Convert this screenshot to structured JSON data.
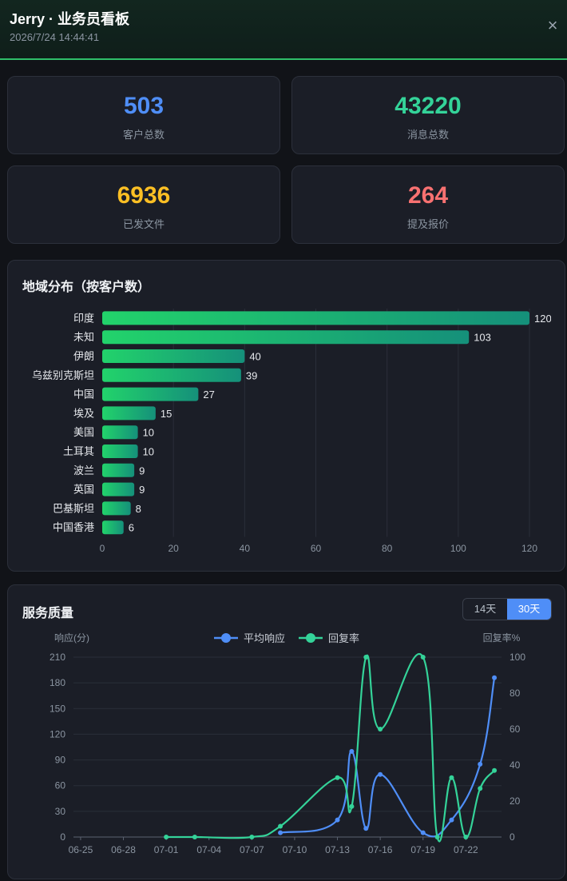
{
  "header": {
    "title": "Jerry · 业务员看板",
    "timestamp": "2026/7/24 14:44:41",
    "close_icon": "×"
  },
  "stats": [
    {
      "value": "503",
      "label": "客户总数",
      "color": "#4f8ef7"
    },
    {
      "value": "43220",
      "label": "消息总数",
      "color": "#34d399"
    },
    {
      "value": "6936",
      "label": "已发文件",
      "color": "#fbbf24"
    },
    {
      "value": "264",
      "label": "提及报价",
      "color": "#f87171"
    }
  ],
  "region": {
    "title": "地域分布（按客户数）",
    "chart_data": {
      "type": "bar",
      "orientation": "horizontal",
      "categories": [
        "印度",
        "未知",
        "伊朗",
        "乌兹别克斯坦",
        "中国",
        "埃及",
        "美国",
        "土耳其",
        "波兰",
        "英国",
        "巴基斯坦",
        "中国香港"
      ],
      "values": [
        120,
        103,
        40,
        39,
        27,
        15,
        10,
        10,
        9,
        9,
        8,
        6
      ],
      "xlim": [
        0,
        120
      ],
      "xticks": [
        0,
        20,
        40,
        60,
        80,
        100,
        120
      ],
      "bar_gradient": [
        "#22d36b",
        "#15907a"
      ],
      "grid": true
    }
  },
  "quality": {
    "title": "服务质量",
    "toggle": {
      "options": [
        "14天",
        "30天"
      ],
      "selected": "30天"
    },
    "chart_data": {
      "type": "line",
      "x": [
        "06-25",
        "06-26",
        "06-27",
        "06-28",
        "06-29",
        "06-30",
        "07-01",
        "07-02",
        "07-03",
        "07-04",
        "07-05",
        "07-06",
        "07-07",
        "07-08",
        "07-09",
        "07-10",
        "07-11",
        "07-12",
        "07-13",
        "07-14",
        "07-15",
        "07-16",
        "07-17",
        "07-18",
        "07-19",
        "07-20",
        "07-21",
        "07-22",
        "07-23",
        "07-24"
      ],
      "xtick_labels": [
        "06-25",
        "06-28",
        "07-01",
        "07-04",
        "07-07",
        "07-10",
        "07-13",
        "07-16",
        "07-19",
        "07-22"
      ],
      "ylabel_left": "响应(分)",
      "ylabel_right": "回复率%",
      "ylim_left": [
        0,
        210
      ],
      "yticks_left": [
        0,
        30,
        60,
        90,
        120,
        150,
        180,
        210
      ],
      "ylim_right": [
        0,
        100
      ],
      "yticks_right": [
        0,
        20,
        40,
        60,
        80,
        100
      ],
      "legend_position": "top-center",
      "series": [
        {
          "name": "平均响应",
          "axis": "left",
          "color": "#4f8ef7",
          "values": [
            null,
            null,
            null,
            null,
            null,
            null,
            null,
            null,
            null,
            null,
            null,
            null,
            null,
            null,
            5,
            null,
            null,
            null,
            20,
            100,
            10,
            73,
            null,
            null,
            5,
            null,
            20,
            null,
            85,
            186
          ]
        },
        {
          "name": "回复率",
          "axis": "right",
          "color": "#34d399",
          "values": [
            null,
            null,
            null,
            null,
            null,
            null,
            0,
            null,
            0,
            null,
            null,
            null,
            0,
            null,
            6,
            null,
            null,
            null,
            33,
            17,
            100,
            60,
            null,
            null,
            100,
            0,
            33,
            0,
            27,
            37
          ]
        }
      ]
    }
  }
}
